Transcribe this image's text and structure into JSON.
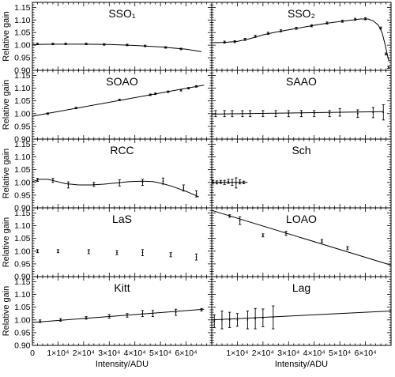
{
  "figure": {
    "ylabel": "Relative gain",
    "xlabel": "Intensity/ADU",
    "x_tick_labels": [
      "0",
      "1×10⁴",
      "2×10⁴",
      "3×10⁴",
      "4×10⁴",
      "5×10⁴",
      "6×10⁴"
    ],
    "y_tick_labels": [
      "0.90",
      "0.95",
      "1.00",
      "1.05",
      "1.10",
      "1.15"
    ]
  },
  "chart_data": [
    {
      "type": "scatter",
      "title": "SSO₁",
      "col": 0,
      "row": 0,
      "xlim": [
        0,
        70000
      ],
      "ylim": [
        0.9,
        1.17
      ],
      "xlabel": "",
      "ylabel": "Relative gain",
      "points": [
        {
          "x": 2000,
          "y": 1.005,
          "err": 0.003
        },
        {
          "x": 8000,
          "y": 1.005,
          "err": 0.003
        },
        {
          "x": 13000,
          "y": 1.005,
          "err": 0.003
        },
        {
          "x": 21000,
          "y": 1.005,
          "err": 0.003
        },
        {
          "x": 28000,
          "y": 1.003,
          "err": 0.003
        },
        {
          "x": 37000,
          "y": 1.001,
          "err": 0.003
        },
        {
          "x": 44000,
          "y": 0.997,
          "err": 0.003
        },
        {
          "x": 52000,
          "y": 0.991,
          "err": 0.003
        },
        {
          "x": 58000,
          "y": 0.985,
          "err": 0.003
        }
      ],
      "fit": [
        [
          0,
          1.003
        ],
        [
          10000,
          1.004
        ],
        [
          20000,
          1.004
        ],
        [
          30000,
          1.003
        ],
        [
          40000,
          0.999
        ],
        [
          50000,
          0.993
        ],
        [
          60000,
          0.984
        ],
        [
          66000,
          0.974
        ]
      ]
    },
    {
      "type": "scatter",
      "title": "SSO₂",
      "col": 1,
      "row": 0,
      "xlim": [
        0,
        70000
      ],
      "ylim": [
        0.9,
        1.17
      ],
      "xlabel": "",
      "ylabel": "",
      "points": [
        {
          "x": 5000,
          "y": 1.012,
          "err": 0.004
        },
        {
          "x": 9000,
          "y": 1.014,
          "err": 0.004
        },
        {
          "x": 13000,
          "y": 1.023,
          "err": 0.004
        },
        {
          "x": 17000,
          "y": 1.035,
          "err": 0.004
        },
        {
          "x": 22000,
          "y": 1.047,
          "err": 0.004
        },
        {
          "x": 27000,
          "y": 1.057,
          "err": 0.004
        },
        {
          "x": 33000,
          "y": 1.067,
          "err": 0.004
        },
        {
          "x": 39000,
          "y": 1.077,
          "err": 0.004
        },
        {
          "x": 45000,
          "y": 1.088,
          "err": 0.004
        },
        {
          "x": 51000,
          "y": 1.095,
          "err": 0.004
        },
        {
          "x": 56000,
          "y": 1.103,
          "err": 0.004
        },
        {
          "x": 60000,
          "y": 1.105,
          "err": 0.004
        },
        {
          "x": 66000,
          "y": 1.068,
          "err": 0.004
        },
        {
          "x": 68000,
          "y": 0.965,
          "err": 0.004
        },
        {
          "x": 69000,
          "y": 0.912,
          "err": 0.004
        }
      ],
      "fit": [
        [
          0,
          1.01
        ],
        [
          5000,
          1.011
        ],
        [
          10000,
          1.015
        ],
        [
          15000,
          1.026
        ],
        [
          20000,
          1.041
        ],
        [
          25000,
          1.052
        ],
        [
          30000,
          1.061
        ],
        [
          35000,
          1.07
        ],
        [
          40000,
          1.079
        ],
        [
          45000,
          1.087
        ],
        [
          50000,
          1.094
        ],
        [
          55000,
          1.1
        ],
        [
          58000,
          1.104
        ],
        [
          61000,
          1.104
        ],
        [
          63000,
          1.097
        ],
        [
          65000,
          1.08
        ],
        [
          66500,
          1.05
        ],
        [
          67500,
          1.01
        ],
        [
          68500,
          0.965
        ],
        [
          69200,
          0.935
        ]
      ]
    },
    {
      "type": "scatter",
      "title": "SOAO",
      "col": 0,
      "row": 1,
      "xlim": [
        0,
        70000
      ],
      "ylim": [
        0.9,
        1.17
      ],
      "xlabel": "",
      "ylabel": "Relative gain",
      "points": [
        {
          "x": 6000,
          "y": 1.0,
          "err": 0.003
        },
        {
          "x": 17000,
          "y": 1.022,
          "err": 0.003
        },
        {
          "x": 34000,
          "y": 1.054,
          "err": 0.003
        },
        {
          "x": 46000,
          "y": 1.074,
          "err": 0.003
        },
        {
          "x": 48000,
          "y": 1.078,
          "err": 0.003
        },
        {
          "x": 53000,
          "y": 1.086,
          "err": 0.003
        },
        {
          "x": 58000,
          "y": 1.092,
          "err": 0.003
        },
        {
          "x": 61000,
          "y": 1.1,
          "err": 0.003
        },
        {
          "x": 64000,
          "y": 1.107,
          "err": 0.003
        }
      ],
      "fit": [
        [
          0,
          0.99
        ],
        [
          67000,
          1.112
        ]
      ]
    },
    {
      "type": "scatter",
      "title": "SAAO",
      "col": 1,
      "row": 1,
      "xlim": [
        0,
        70000
      ],
      "ylim": [
        0.9,
        1.17
      ],
      "xlabel": "",
      "ylabel": "",
      "points": [
        {
          "x": 1500,
          "y": 1.0,
          "err": 0.012
        },
        {
          "x": 5000,
          "y": 1.0,
          "err": 0.012
        },
        {
          "x": 8000,
          "y": 1.0,
          "err": 0.012
        },
        {
          "x": 12000,
          "y": 1.0,
          "err": 0.012
        },
        {
          "x": 15000,
          "y": 1.0,
          "err": 0.012
        },
        {
          "x": 20000,
          "y": 1.0,
          "err": 0.012
        },
        {
          "x": 25000,
          "y": 1.0,
          "err": 0.012
        },
        {
          "x": 30000,
          "y": 1.0,
          "err": 0.012
        },
        {
          "x": 35000,
          "y": 1.0,
          "err": 0.012
        },
        {
          "x": 40000,
          "y": 1.0,
          "err": 0.012
        },
        {
          "x": 46000,
          "y": 1.0,
          "err": 0.012
        },
        {
          "x": 50000,
          "y": 1.005,
          "err": 0.015
        },
        {
          "x": 57000,
          "y": 1.0,
          "err": 0.015
        },
        {
          "x": 63000,
          "y": 1.004,
          "err": 0.02
        },
        {
          "x": 67000,
          "y": 1.005,
          "err": 0.03
        }
      ],
      "fit": [
        [
          0,
          0.998
        ],
        [
          67000,
          1.008
        ]
      ]
    },
    {
      "type": "scatter",
      "title": "RCC",
      "col": 0,
      "row": 2,
      "xlim": [
        0,
        70000
      ],
      "ylim": [
        0.9,
        1.17
      ],
      "xlabel": "",
      "ylabel": "Relative gain",
      "points": [
        {
          "x": 2000,
          "y": 1.01,
          "err": 0.006
        },
        {
          "x": 8000,
          "y": 1.008,
          "err": 0.008
        },
        {
          "x": 14000,
          "y": 0.99,
          "err": 0.012
        },
        {
          "x": 24000,
          "y": 0.992,
          "err": 0.008
        },
        {
          "x": 34000,
          "y": 0.998,
          "err": 0.012
        },
        {
          "x": 43000,
          "y": 1.0,
          "err": 0.012
        },
        {
          "x": 51000,
          "y": 1.005,
          "err": 0.012
        },
        {
          "x": 59000,
          "y": 0.978,
          "err": 0.012
        },
        {
          "x": 64000,
          "y": 0.955,
          "err": 0.012
        }
      ],
      "fit": [
        [
          0,
          1.003
        ],
        [
          3000,
          1.012
        ],
        [
          6000,
          1.012
        ],
        [
          9000,
          1.005
        ],
        [
          13000,
          0.995
        ],
        [
          18000,
          0.99
        ],
        [
          23000,
          0.99
        ],
        [
          28000,
          0.993
        ],
        [
          33000,
          0.998
        ],
        [
          38000,
          1.003
        ],
        [
          43000,
          1.005
        ],
        [
          47000,
          1.003
        ],
        [
          51000,
          0.995
        ],
        [
          55000,
          0.983
        ],
        [
          60000,
          0.965
        ],
        [
          65000,
          0.943
        ]
      ]
    },
    {
      "type": "scatter",
      "title": "Sch",
      "col": 1,
      "row": 2,
      "xlim": [
        0,
        70000
      ],
      "ylim": [
        0.9,
        1.17
      ],
      "xlabel": "",
      "ylabel": "",
      "points": [
        {
          "x": 500,
          "y": 1.002,
          "err": 0.006
        },
        {
          "x": 2000,
          "y": 1.0,
          "err": 0.006
        },
        {
          "x": 3500,
          "y": 1.002,
          "err": 0.006
        },
        {
          "x": 5000,
          "y": 1.0,
          "err": 0.008
        },
        {
          "x": 6500,
          "y": 1.004,
          "err": 0.008
        },
        {
          "x": 8000,
          "y": 1.0,
          "err": 0.012
        },
        {
          "x": 9500,
          "y": 0.998,
          "err": 0.02
        },
        {
          "x": 11000,
          "y": 1.002,
          "err": 0.008
        },
        {
          "x": 12500,
          "y": 1.0,
          "err": 0.005
        }
      ],
      "fit": [
        [
          0,
          1.0
        ],
        [
          14000,
          1.0
        ]
      ]
    },
    {
      "type": "scatter",
      "title": "LaS",
      "col": 0,
      "row": 3,
      "xlim": [
        0,
        70000
      ],
      "ylim": [
        0.9,
        1.17
      ],
      "xlabel": "",
      "ylabel": "Relative gain",
      "points": [
        {
          "x": 2000,
          "y": 1.0,
          "err": 0.006
        },
        {
          "x": 10000,
          "y": 1.0,
          "err": 0.006
        },
        {
          "x": 22000,
          "y": 0.998,
          "err": 0.008
        },
        {
          "x": 33000,
          "y": 0.994,
          "err": 0.008
        },
        {
          "x": 43000,
          "y": 0.994,
          "err": 0.012
        },
        {
          "x": 54000,
          "y": 0.986,
          "err": 0.008
        },
        {
          "x": 64000,
          "y": 0.977,
          "err": 0.012
        }
      ],
      "fit": []
    },
    {
      "type": "scatter",
      "title": "LOAO",
      "col": 1,
      "row": 3,
      "xlim": [
        0,
        70000
      ],
      "ylim": [
        0.9,
        1.17
      ],
      "xlabel": "",
      "ylabel": "",
      "points": [
        {
          "x": 7000,
          "y": 1.138,
          "err": 0.005
        },
        {
          "x": 11000,
          "y": 1.12,
          "err": 0.015
        },
        {
          "x": 20000,
          "y": 1.062,
          "err": 0.006
        },
        {
          "x": 29000,
          "y": 1.07,
          "err": 0.008
        },
        {
          "x": 43000,
          "y": 1.04,
          "err": 0.006
        },
        {
          "x": 53000,
          "y": 1.012,
          "err": 0.006
        }
      ],
      "fit": [
        [
          0,
          1.16
        ],
        [
          70000,
          0.945
        ]
      ]
    },
    {
      "type": "scatter",
      "title": "Kitt",
      "col": 0,
      "row": 4,
      "xlim": [
        0,
        70000
      ],
      "ylim": [
        0.9,
        1.17
      ],
      "xlabel": "Intensity/ADU",
      "ylabel": "Relative gain",
      "points": [
        {
          "x": 3000,
          "y": 0.995,
          "err": 0.005
        },
        {
          "x": 11000,
          "y": 1.0,
          "err": 0.005
        },
        {
          "x": 21000,
          "y": 1.008,
          "err": 0.005
        },
        {
          "x": 30000,
          "y": 1.014,
          "err": 0.007
        },
        {
          "x": 37000,
          "y": 1.018,
          "err": 0.007
        },
        {
          "x": 43000,
          "y": 1.025,
          "err": 0.012
        },
        {
          "x": 47000,
          "y": 1.025,
          "err": 0.012
        },
        {
          "x": 56000,
          "y": 1.03,
          "err": 0.012
        },
        {
          "x": 66000,
          "y": 1.04,
          "err": 0.005
        }
      ],
      "fit": [
        [
          0,
          0.99
        ],
        [
          67000,
          1.042
        ]
      ]
    },
    {
      "type": "scatter",
      "title": "Lag",
      "col": 1,
      "row": 4,
      "xlim": [
        0,
        70000
      ],
      "ylim": [
        0.9,
        1.17
      ],
      "xlabel": "Intensity/ADU",
      "ylabel": "",
      "points": [
        {
          "x": 1000,
          "y": 0.995,
          "err": 0.025
        },
        {
          "x": 4000,
          "y": 1.0,
          "err": 0.035
        },
        {
          "x": 7000,
          "y": 1.0,
          "err": 0.03
        },
        {
          "x": 10000,
          "y": 1.0,
          "err": 0.025
        },
        {
          "x": 14000,
          "y": 1.0,
          "err": 0.035
        },
        {
          "x": 17000,
          "y": 1.005,
          "err": 0.04
        },
        {
          "x": 20000,
          "y": 1.008,
          "err": 0.035
        },
        {
          "x": 24000,
          "y": 1.01,
          "err": 0.045
        }
      ],
      "fit": [
        [
          0,
          1.0
        ],
        [
          70000,
          1.035
        ]
      ]
    }
  ]
}
